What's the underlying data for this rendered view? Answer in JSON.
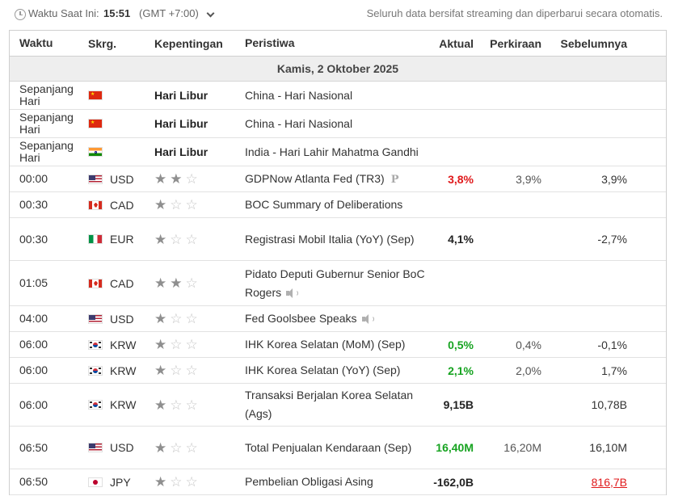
{
  "topbar": {
    "label": "Waktu Saat Ini:",
    "time": "15:51",
    "timezone": "(GMT +7:00)",
    "note": "Seluruh data bersifat streaming dan diperbarui secara otomatis."
  },
  "headers": {
    "time": "Waktu",
    "currency": "Skrg.",
    "importance": "Kepentingan",
    "event": "Peristiwa",
    "actual": "Aktual",
    "forecast": "Perkiraan",
    "previous": "Sebelumnya"
  },
  "date_label": "Kamis, 2 Oktober 2025",
  "rows": [
    {
      "time": "Sepanjang Hari",
      "flag": "cn",
      "currency": "",
      "holiday": "Hari Libur",
      "stars": 0,
      "event": "China - Hari Nasional",
      "actual": "",
      "forecast": "",
      "previous": ""
    },
    {
      "time": "Sepanjang Hari",
      "flag": "cn",
      "currency": "",
      "holiday": "Hari Libur",
      "stars": 0,
      "event": "China - Hari Nasional",
      "actual": "",
      "forecast": "",
      "previous": ""
    },
    {
      "time": "Sepanjang Hari",
      "flag": "in",
      "currency": "",
      "holiday": "Hari Libur",
      "stars": 0,
      "event": "India - Hari Lahir Mahatma Gandhi",
      "actual": "",
      "forecast": "",
      "previous": ""
    },
    {
      "time": "00:00",
      "flag": "us",
      "currency": "USD",
      "holiday": "",
      "stars": 2,
      "event": "GDPNow Atlanta Fed (TR3)",
      "event_icon": "preliminary-icon",
      "event_icon_text": "P",
      "actual": "3,8%",
      "actual_color": "#e0191b",
      "forecast": "3,9%",
      "previous": "3,9%"
    },
    {
      "time": "00:30",
      "flag": "ca",
      "currency": "CAD",
      "holiday": "",
      "stars": 1,
      "event": "BOC Summary of Deliberations",
      "actual": "",
      "forecast": "",
      "previous": ""
    },
    {
      "time": "00:30",
      "flag": "it",
      "currency": "EUR",
      "holiday": "",
      "stars": 1,
      "event": "Registrasi Mobil Italia (YoY) (Sep)",
      "actual": "4,1%",
      "actual_color": "#222222",
      "forecast": "",
      "previous": "-2,7%"
    },
    {
      "time": "01:05",
      "flag": "ca",
      "currency": "CAD",
      "holiday": "",
      "stars": 2,
      "event": "Pidato Deputi Gubernur Senior BoC Rogers",
      "event_icon": "speaker-icon",
      "actual": "",
      "forecast": "",
      "previous": ""
    },
    {
      "time": "04:00",
      "flag": "us",
      "currency": "USD",
      "holiday": "",
      "stars": 1,
      "event": "Fed Goolsbee Speaks",
      "event_icon": "speaker-icon",
      "actual": "",
      "forecast": "",
      "previous": ""
    },
    {
      "time": "06:00",
      "flag": "kr",
      "currency": "KRW",
      "holiday": "",
      "stars": 1,
      "event": "IHK Korea Selatan (MoM) (Sep)",
      "actual": "0,5%",
      "actual_color": "#16a320",
      "forecast": "0,4%",
      "previous": "-0,1%"
    },
    {
      "time": "06:00",
      "flag": "kr",
      "currency": "KRW",
      "holiday": "",
      "stars": 1,
      "event": "IHK Korea Selatan (YoY) (Sep)",
      "actual": "2,1%",
      "actual_color": "#16a320",
      "forecast": "2,0%",
      "previous": "1,7%"
    },
    {
      "time": "06:00",
      "flag": "kr",
      "currency": "KRW",
      "holiday": "",
      "stars": 1,
      "event": "Transaksi Berjalan Korea Selatan (Ags)",
      "actual": "9,15B",
      "actual_color": "#222222",
      "forecast": "",
      "previous": "10,78B"
    },
    {
      "time": "06:50",
      "flag": "us",
      "currency": "USD",
      "holiday": "",
      "stars": 1,
      "event": "Total Penjualan Kendaraan (Sep)",
      "actual": "16,40M",
      "actual_color": "#16a320",
      "forecast": "16,20M",
      "previous": "16,10M"
    },
    {
      "time": "06:50",
      "flag": "jp",
      "currency": "JPY",
      "holiday": "",
      "stars": 1,
      "event": "Pembelian Obligasi Asing",
      "actual": "-162,0B",
      "actual_color": "#222222",
      "forecast": "",
      "previous": "816,7B",
      "previous_style": "revised-red"
    }
  ],
  "colors": {
    "negative": "#e0191b",
    "positive": "#16a320",
    "star_full": "#8f8f8f",
    "star_empty": "#c5c5c5",
    "date_row_bg": "#eeeeee"
  }
}
